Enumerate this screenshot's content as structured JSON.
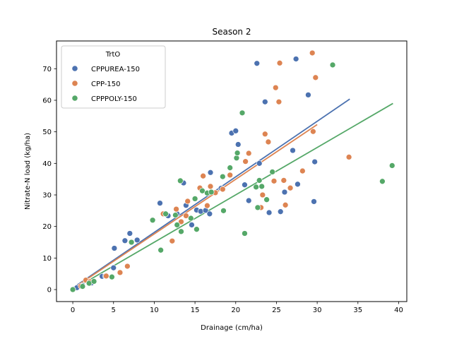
{
  "chart_data": {
    "type": "scatter",
    "title": "Season 2",
    "xlabel": "Drainage (cm/ha)",
    "ylabel": "Nitrate-N load (kg/ha)",
    "xlim": [
      -2,
      41
    ],
    "ylim": [
      -3.8,
      78.8
    ],
    "xticks": [
      0,
      5,
      10,
      15,
      20,
      25,
      30,
      35,
      40
    ],
    "yticks": [
      0,
      10,
      20,
      30,
      40,
      50,
      60,
      70
    ],
    "grid": false,
    "legend": {
      "title": "TrtO",
      "placement": "top-left"
    },
    "series": [
      {
        "name": "CPPUREA-150",
        "color": "#4c72b0",
        "points": [
          [
            0,
            0
          ],
          [
            0.5,
            0.6
          ],
          [
            1.2,
            1.3
          ],
          [
            1.9,
            2.4
          ],
          [
            2.3,
            2.1
          ],
          [
            3.6,
            4.2
          ],
          [
            4,
            4.3
          ],
          [
            5,
            6.9
          ],
          [
            5.1,
            13.1
          ],
          [
            6.4,
            15.5
          ],
          [
            7,
            17.8
          ],
          [
            7.9,
            15.7
          ],
          [
            10.7,
            27.4
          ],
          [
            11.7,
            23.4
          ],
          [
            12.8,
            24
          ],
          [
            13.6,
            33.8
          ],
          [
            13.9,
            26.7
          ],
          [
            14.6,
            20.5
          ],
          [
            15.2,
            25.2
          ],
          [
            15.7,
            24.8
          ],
          [
            16.3,
            25.1
          ],
          [
            16.8,
            24
          ],
          [
            16.9,
            37.1
          ],
          [
            18.2,
            32.1
          ],
          [
            19.5,
            49.6
          ],
          [
            20,
            50.3
          ],
          [
            20.3,
            46
          ],
          [
            21.1,
            33.2
          ],
          [
            21.6,
            28.2
          ],
          [
            22.6,
            71.7
          ],
          [
            22.9,
            40
          ],
          [
            23.6,
            59.5
          ],
          [
            24.1,
            24.4
          ],
          [
            25.5,
            24.7
          ],
          [
            26,
            30.9
          ],
          [
            27,
            44.1
          ],
          [
            27.4,
            73.1
          ],
          [
            27.6,
            33.4
          ],
          [
            28.9,
            61.7
          ],
          [
            29.7,
            40.5
          ],
          [
            29.6,
            27.9
          ]
        ],
        "fit": [
          [
            0,
            0.5
          ],
          [
            34,
            60.4
          ]
        ]
      },
      {
        "name": "CPP-150",
        "color": "#dd8452",
        "points": [
          [
            0,
            0
          ],
          [
            1,
            1.1
          ],
          [
            1.6,
            3
          ],
          [
            2.1,
            2.5
          ],
          [
            4.1,
            4.3
          ],
          [
            5.8,
            5.4
          ],
          [
            6.7,
            7.4
          ],
          [
            11.1,
            24
          ],
          [
            12.2,
            15.4
          ],
          [
            12.7,
            25.5
          ],
          [
            13.3,
            21.5
          ],
          [
            13.9,
            23.4
          ],
          [
            14.1,
            28
          ],
          [
            15.6,
            32.2
          ],
          [
            16,
            36
          ],
          [
            16.5,
            26.6
          ],
          [
            16.9,
            32.7
          ],
          [
            17.5,
            30.7
          ],
          [
            18.4,
            31.8
          ],
          [
            19.3,
            36.3
          ],
          [
            21.2,
            40.6
          ],
          [
            21.6,
            43.2
          ],
          [
            23.1,
            26
          ],
          [
            23.3,
            30
          ],
          [
            23.6,
            49.3
          ],
          [
            24,
            46.8
          ],
          [
            24.7,
            34.4
          ],
          [
            24.9,
            64
          ],
          [
            25.3,
            59.5
          ],
          [
            25.4,
            71.8
          ],
          [
            25.9,
            34.6
          ],
          [
            26.1,
            26.8
          ],
          [
            26.7,
            32.2
          ],
          [
            28.2,
            37.6
          ],
          [
            29.4,
            75
          ],
          [
            29.5,
            50.1
          ],
          [
            29.8,
            67.2
          ],
          [
            33.9,
            42
          ]
        ],
        "fit": [
          [
            0,
            0.3
          ],
          [
            30,
            52.3
          ]
        ]
      },
      {
        "name": "CPPPOLY-150",
        "color": "#55a868",
        "points": [
          [
            0,
            0
          ],
          [
            1.2,
            1
          ],
          [
            2,
            2
          ],
          [
            2.6,
            2.6
          ],
          [
            4.8,
            4
          ],
          [
            7.2,
            15
          ],
          [
            9.8,
            22
          ],
          [
            10.8,
            12.5
          ],
          [
            11.4,
            24
          ],
          [
            12.6,
            23.6
          ],
          [
            12.8,
            20.5
          ],
          [
            13.2,
            34.5
          ],
          [
            13.3,
            18.4
          ],
          [
            14.5,
            22.6
          ],
          [
            15,
            28.8
          ],
          [
            15.2,
            19.1
          ],
          [
            15.9,
            31.3
          ],
          [
            16.5,
            30.6
          ],
          [
            17,
            30.9
          ],
          [
            18.4,
            35.8
          ],
          [
            18.5,
            25
          ],
          [
            19.3,
            38.6
          ],
          [
            20.1,
            41.7
          ],
          [
            20.2,
            43.3
          ],
          [
            20.8,
            56
          ],
          [
            21.1,
            17.8
          ],
          [
            22.5,
            32.5
          ],
          [
            22.7,
            26
          ],
          [
            22.9,
            34.6
          ],
          [
            23.2,
            32.7
          ],
          [
            23.8,
            28.5
          ],
          [
            24.5,
            37.3
          ],
          [
            31.9,
            71.2
          ],
          [
            38,
            34.3
          ],
          [
            39.2,
            39.3
          ]
        ],
        "fit": [
          [
            0,
            0
          ],
          [
            39.3,
            59
          ]
        ]
      }
    ]
  }
}
